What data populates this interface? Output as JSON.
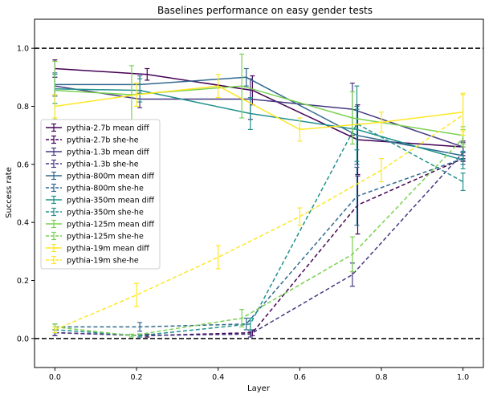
{
  "chart_data": {
    "type": "line",
    "title": "Baselines performance on easy gender tests",
    "xlabel": "Layer",
    "ylabel": "Success rate",
    "xlim": [
      -0.05,
      1.05
    ],
    "ylim": [
      -0.1,
      1.1
    ],
    "xticks": [
      0.0,
      0.2,
      0.4,
      0.6,
      0.8,
      1.0
    ],
    "xtick_labels": [
      "0.0",
      "0.2",
      "0.4",
      "0.6",
      "0.8",
      "1.0"
    ],
    "yticks": [
      0.0,
      0.2,
      0.4,
      0.6,
      0.8,
      1.0
    ],
    "ytick_labels": [
      "0.0",
      "0.2",
      "0.4",
      "0.6",
      "0.8",
      "1.0"
    ],
    "grid": false,
    "reference_lines": [
      0.0,
      1.0
    ],
    "legend_position": "center-left",
    "series": [
      {
        "name": "pythia-2.7b mean diff",
        "color": "#440154",
        "dash": false,
        "x": [
          0.0,
          0.226,
          0.484,
          0.742,
          1.0
        ],
        "y": [
          0.93,
          0.91,
          0.855,
          0.685,
          0.66
        ],
        "err": [
          0.03,
          0.02,
          0.05,
          0.12,
          0.02
        ]
      },
      {
        "name": "pythia-2.7b she-he",
        "color": "#440154",
        "dash": true,
        "x": [
          0.0,
          0.226,
          0.484,
          0.742,
          1.0
        ],
        "y": [
          0.02,
          0.01,
          0.02,
          0.46,
          0.62
        ],
        "err": [
          0.01,
          0.005,
          0.01,
          0.1,
          0.01
        ]
      },
      {
        "name": "pythia-1.3b mean diff",
        "color": "#443983",
        "dash": false,
        "x": [
          0.0,
          0.208,
          0.479,
          0.729,
          1.0
        ],
        "y": [
          0.87,
          0.825,
          0.825,
          0.79,
          0.66
        ],
        "err": [
          0.03,
          0.03,
          0.07,
          0.09,
          0.015
        ]
      },
      {
        "name": "pythia-1.3b she-he",
        "color": "#443983",
        "dash": true,
        "x": [
          0.0,
          0.208,
          0.479,
          0.729,
          1.0
        ],
        "y": [
          0.02,
          0.01,
          0.015,
          0.22,
          0.64
        ],
        "err": [
          0.01,
          0.005,
          0.01,
          0.04,
          0.02
        ]
      },
      {
        "name": "pythia-800m mean diff",
        "color": "#31688e",
        "dash": false,
        "x": [
          0.0,
          0.208,
          0.469,
          0.74,
          1.0
        ],
        "y": [
          0.875,
          0.875,
          0.9,
          0.7,
          0.63
        ],
        "err": [
          0.04,
          0.03,
          0.03,
          0.1,
          0.015
        ]
      },
      {
        "name": "pythia-800m she-he",
        "color": "#31688e",
        "dash": true,
        "x": [
          0.0,
          0.208,
          0.469,
          0.74,
          1.0
        ],
        "y": [
          0.04,
          0.04,
          0.05,
          0.49,
          0.62
        ],
        "err": [
          0.01,
          0.015,
          0.02,
          0.1,
          0.02
        ]
      },
      {
        "name": "pythia-350m mean diff",
        "color": "#21918c",
        "dash": false,
        "x": [
          0.0,
          0.208,
          0.479,
          0.74,
          1.0
        ],
        "y": [
          0.86,
          0.855,
          0.775,
          0.72,
          0.615
        ],
        "err": [
          0.05,
          0.04,
          0.055,
          0.07,
          0.03
        ]
      },
      {
        "name": "pythia-350m she-he",
        "color": "#21918c",
        "dash": true,
        "x": [
          0.0,
          0.208,
          0.479,
          0.74,
          1.0
        ],
        "y": [
          0.03,
          0.01,
          0.05,
          0.74,
          0.54
        ],
        "err": [
          0.01,
          0.005,
          0.02,
          0.13,
          0.03
        ]
      },
      {
        "name": "pythia-125m mean diff",
        "color": "#7ad151",
        "dash": false,
        "x": [
          0.0,
          0.188,
          0.458,
          0.729,
          1.0
        ],
        "y": [
          0.855,
          0.84,
          0.87,
          0.76,
          0.7
        ],
        "err": [
          0.1,
          0.1,
          0.11,
          0.09,
          0.03
        ]
      },
      {
        "name": "pythia-125m she-he",
        "color": "#7ad151",
        "dash": true,
        "x": [
          0.0,
          0.188,
          0.458,
          0.729,
          1.0
        ],
        "y": [
          0.04,
          0.01,
          0.07,
          0.29,
          0.69
        ],
        "err": [
          0.01,
          0.005,
          0.03,
          0.06,
          0.03
        ]
      },
      {
        "name": "pythia-19m mean diff",
        "color": "#fde725",
        "dash": false,
        "x": [
          0.0,
          0.2,
          0.4,
          0.6,
          0.8,
          1.0
        ],
        "y": [
          0.8,
          0.84,
          0.87,
          0.72,
          0.745,
          0.78
        ],
        "err": [
          0.04,
          0.04,
          0.04,
          0.04,
          0.035,
          0.065
        ]
      },
      {
        "name": "pythia-19m she-he",
        "color": "#fde725",
        "dash": true,
        "x": [
          0.0,
          0.2,
          0.4,
          0.6,
          0.8,
          1.0
        ],
        "y": [
          0.03,
          0.15,
          0.28,
          0.42,
          0.58,
          0.77
        ],
        "err": [
          0.01,
          0.04,
          0.04,
          0.03,
          0.04,
          0.07
        ]
      }
    ]
  }
}
